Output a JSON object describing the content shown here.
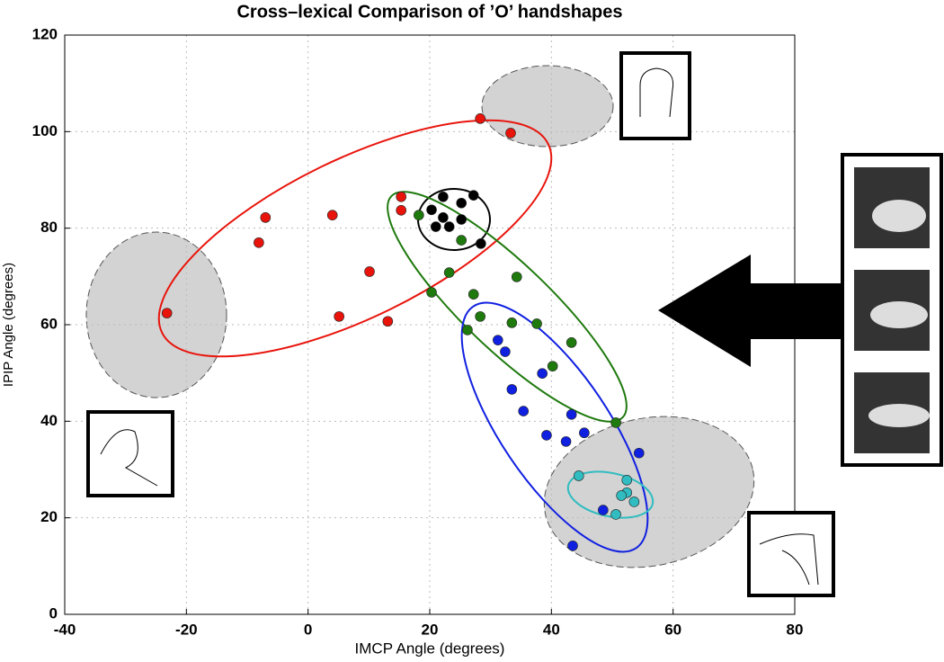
{
  "chart_data": {
    "type": "scatter",
    "title": "Cross–lexical Comparison of ’O’ handshapes",
    "x_label": "IMCP Angle (degrees)",
    "y_label": "IPIP Angle (degrees)",
    "xlim": [
      -40,
      80
    ],
    "ylim": [
      0,
      120
    ],
    "xticks": [
      -40,
      -20,
      0,
      20,
      40,
      60,
      80
    ],
    "yticks": [
      0,
      20,
      40,
      60,
      80,
      100,
      120
    ],
    "grid": true,
    "series": [
      {
        "color": "#e8140c",
        "x": [
          -23.2,
          -8.1,
          -7.0,
          4.0,
          5.1,
          10.1,
          13.1,
          15.3,
          15.3,
          28.3,
          33.3
        ],
        "y": [
          62.4,
          77.0,
          82.2,
          82.7,
          61.7,
          71.0,
          60.7,
          86.5,
          83.7,
          102.7,
          99.7
        ]
      },
      {
        "color": "#000000",
        "x": [
          22.2,
          20.3,
          22.2,
          25.2,
          27.2,
          23.2,
          21.0,
          25.2,
          28.4
        ],
        "y": [
          86.5,
          83.8,
          82.2,
          85.2,
          86.8,
          80.3,
          80.3,
          81.8,
          76.8
        ]
      },
      {
        "color": "#1f7a0e",
        "x": [
          18.2,
          25.2,
          23.2,
          20.3,
          27.2,
          26.2,
          28.3,
          34.3,
          33.5,
          37.6,
          43.3,
          40.2,
          50.6
        ],
        "y": [
          82.7,
          77.5,
          70.8,
          66.7,
          66.3,
          58.9,
          61.7,
          69.9,
          60.4,
          60.2,
          56.3,
          51.4,
          39.7
        ]
      },
      {
        "color": "#1020e0",
        "x": [
          31.2,
          32.4,
          38.5,
          33.5,
          35.4,
          43.3,
          45.4,
          39.2,
          42.4,
          54.4,
          48.5,
          43.5
        ],
        "y": [
          56.8,
          54.4,
          49.9,
          46.6,
          42.1,
          41.4,
          37.6,
          37.1,
          35.8,
          33.4,
          21.6,
          14.2
        ]
      },
      {
        "color": "#30bcc0",
        "x": [
          44.5,
          52.4,
          52.4,
          51.5,
          53.6,
          50.6
        ],
        "y": [
          28.7,
          27.8,
          25.2,
          24.6,
          23.3,
          20.7
        ]
      }
    ]
  }
}
